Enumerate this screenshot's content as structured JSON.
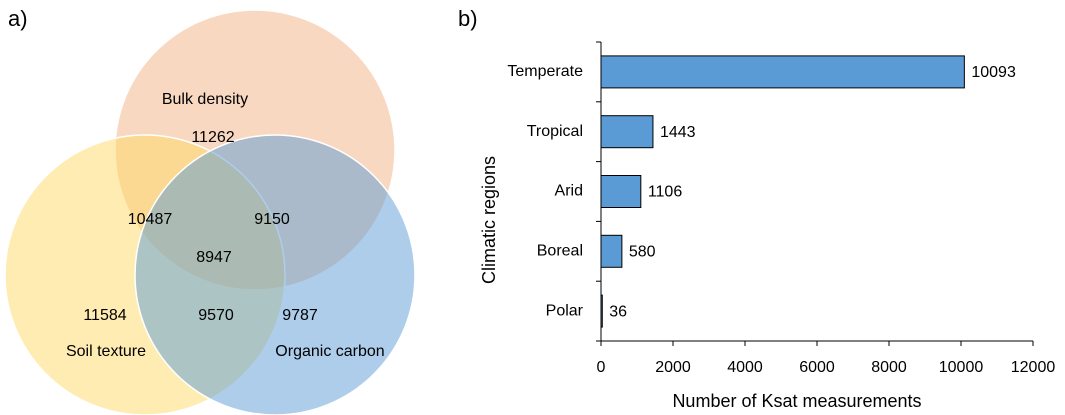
{
  "chart_data": [
    {
      "type": "venn",
      "panel_label": "a)",
      "sets": [
        {
          "name": "Bulk density",
          "color": "#f4b183",
          "value": 11262
        },
        {
          "name": "Soil texture",
          "color": "#ffd966",
          "value": 11584
        },
        {
          "name": "Organic carbon",
          "color": "#5b9bd5",
          "value": 9787
        }
      ],
      "intersections": [
        {
          "sets": [
            "Bulk density",
            "Soil texture"
          ],
          "value": 10487
        },
        {
          "sets": [
            "Bulk density",
            "Organic carbon"
          ],
          "value": 9150
        },
        {
          "sets": [
            "Soil texture",
            "Organic carbon"
          ],
          "value": 9570
        },
        {
          "sets": [
            "Bulk density",
            "Soil texture",
            "Organic carbon"
          ],
          "value": 8947
        }
      ]
    },
    {
      "type": "barh",
      "panel_label": "b)",
      "categories": [
        "Temperate",
        "Tropical",
        "Arid",
        "Boreal",
        "Polar"
      ],
      "values": [
        10093,
        1443,
        1106,
        580,
        36
      ],
      "color": "#5b9bd5",
      "xlabel": "Number of Ksat measurements",
      "ylabel": "Climatic regions",
      "xlim": [
        0,
        12000
      ],
      "xticks": [
        0,
        2000,
        4000,
        6000,
        8000,
        10000,
        12000
      ]
    }
  ]
}
